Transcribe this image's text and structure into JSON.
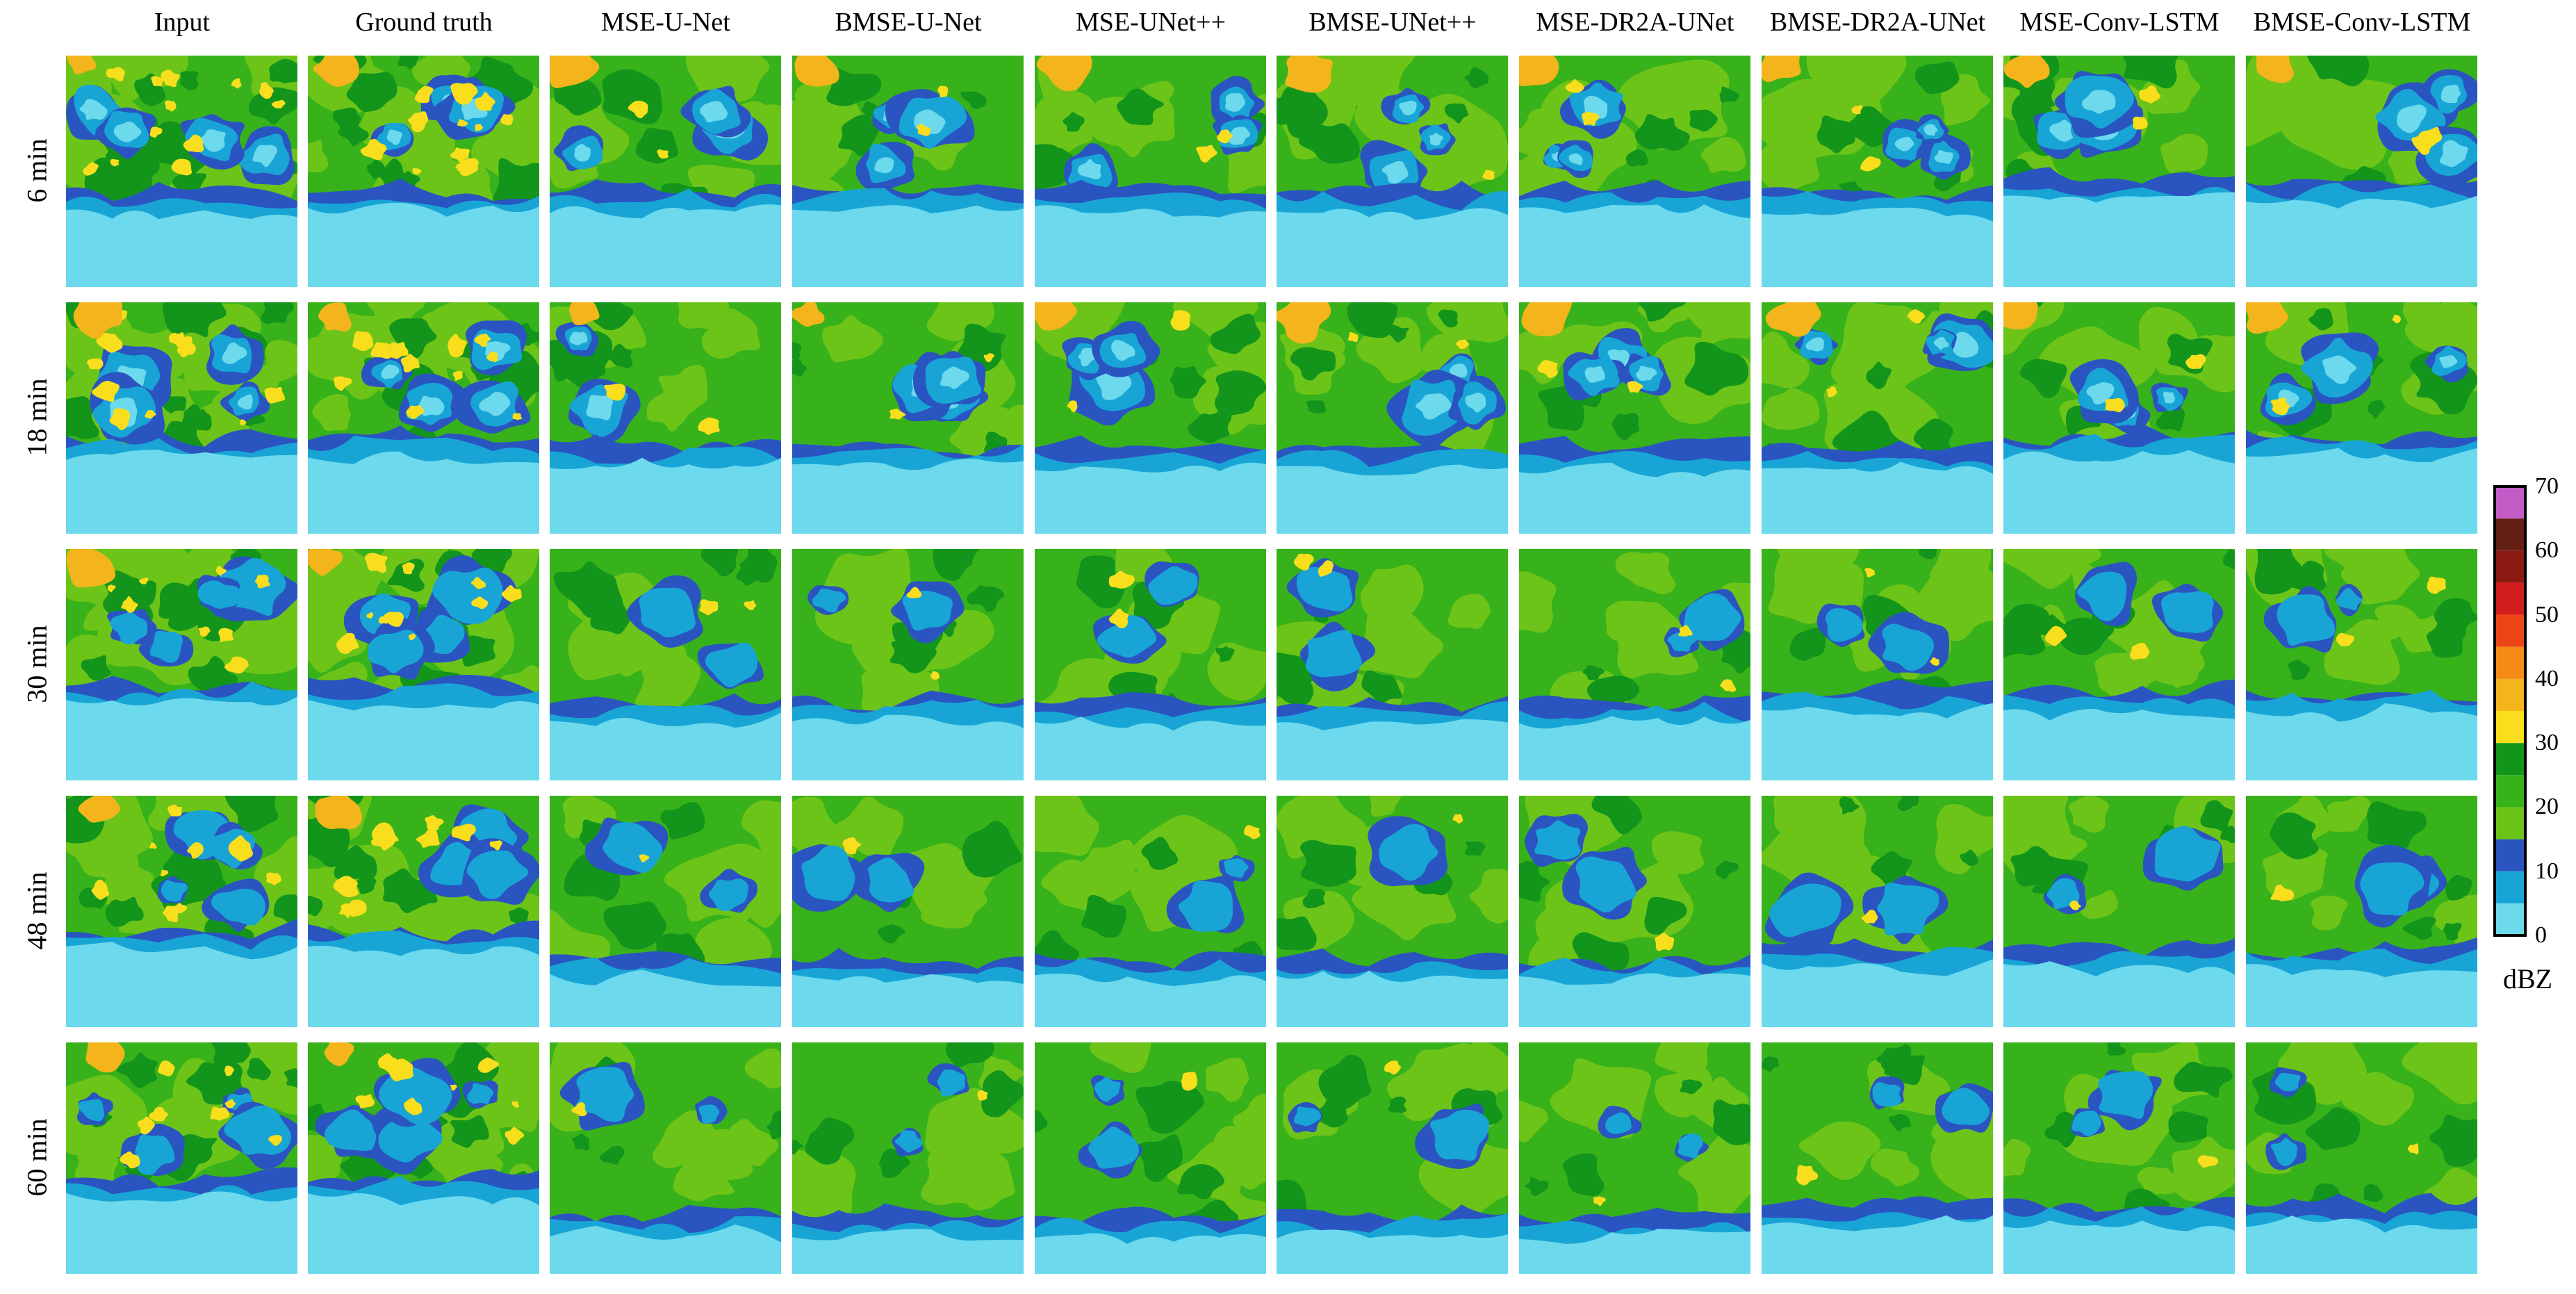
{
  "figure": {
    "columns": [
      "Input",
      "Ground truth",
      "MSE-U-Net",
      "BMSE-U-Net",
      "MSE-UNet++",
      "BMSE-UNet++",
      "MSE-DR2A-UNet",
      "BMSE-DR2A-UNet",
      "MSE-Conv-LSTM",
      "BMSE-Conv-LSTM"
    ],
    "rows": [
      "6 min",
      "18 min",
      "30 min",
      "48 min",
      "60 min"
    ]
  },
  "colorbar": {
    "unit": "dBZ",
    "ticks": [
      "70",
      "60",
      "50",
      "40",
      "30",
      "20",
      "10",
      "0"
    ],
    "levels": [
      {
        "from": 0,
        "to": 5,
        "color": "#6cd9ec"
      },
      {
        "from": 5,
        "to": 10,
        "color": "#18a5d6"
      },
      {
        "from": 10,
        "to": 15,
        "color": "#2a55c0"
      },
      {
        "from": 15,
        "to": 20,
        "color": "#6dc419"
      },
      {
        "from": 20,
        "to": 25,
        "color": "#38b21a"
      },
      {
        "from": 25,
        "to": 30,
        "color": "#12951a"
      },
      {
        "from": 30,
        "to": 35,
        "color": "#f8de1c"
      },
      {
        "from": 35,
        "to": 40,
        "color": "#f4b41c"
      },
      {
        "from": 40,
        "to": 45,
        "color": "#f58b14"
      },
      {
        "from": 45,
        "to": 50,
        "color": "#ee4517"
      },
      {
        "from": 50,
        "to": 55,
        "color": "#d21d1d"
      },
      {
        "from": 55,
        "to": 60,
        "color": "#8b1a12"
      },
      {
        "from": 60,
        "to": 65,
        "color": "#621f12"
      },
      {
        "from": 65,
        "to": 70,
        "color": "#c45cc7"
      }
    ]
  }
}
